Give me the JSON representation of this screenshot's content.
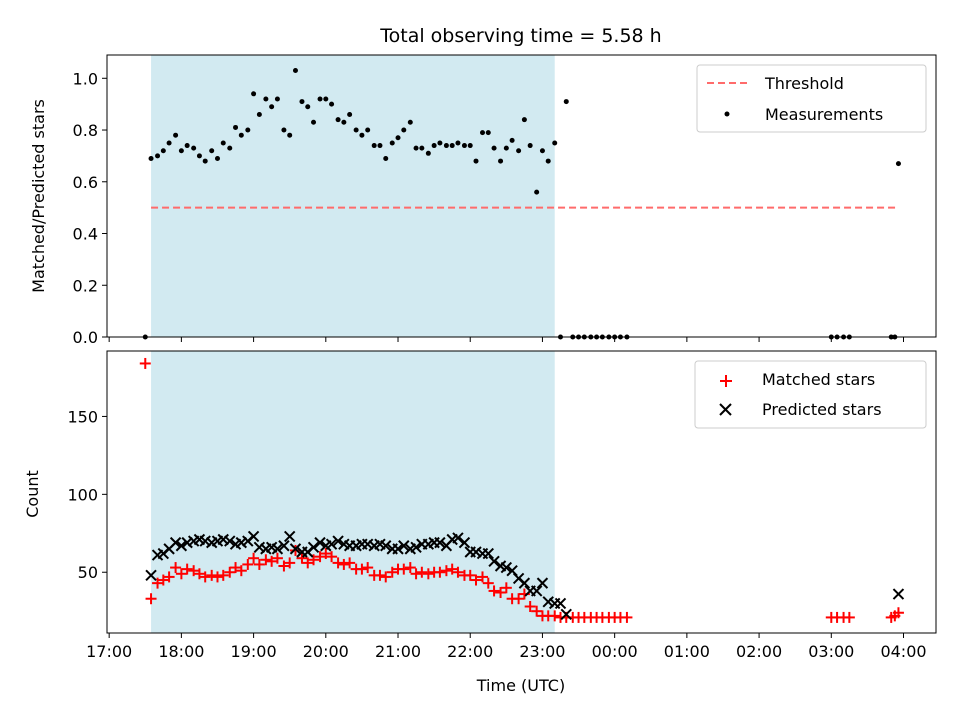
{
  "chart_data": {
    "title": "Total observing time = 5.58 h",
    "xlabel": "Time (UTC)",
    "x_tick_labels": [
      "17:00",
      "18:00",
      "19:00",
      "20:00",
      "21:00",
      "22:00",
      "23:00",
      "00:00",
      "01:00",
      "02:00",
      "03:00",
      "04:00"
    ],
    "x_range_hours": [
      16.97,
      28.45
    ],
    "observing_window_hours": [
      17.58,
      23.17
    ],
    "shade_color": "#add8e6",
    "panels": [
      {
        "type": "scatter",
        "ylabel": "Matched/Predicted stars",
        "ylim": [
          0,
          1.09
        ],
        "y_ticks": [
          0,
          0.2,
          0.4,
          0.6,
          0.8,
          1.0
        ],
        "y_tick_labels": [
          "0.0",
          "0.2",
          "0.4",
          "0.6",
          "0.8",
          "1.0"
        ],
        "legend_position": "top-right",
        "threshold": {
          "name": "Threshold",
          "value": 0.5,
          "x": [
            17.58,
            27.93
          ],
          "color": "#ff6b6b"
        },
        "series": [
          {
            "name": "Measurements",
            "color": "#000000",
            "x": [
              17.5,
              17.58,
              17.67,
              17.75,
              17.83,
              17.92,
              18.0,
              18.08,
              18.17,
              18.25,
              18.33,
              18.42,
              18.5,
              18.58,
              18.67,
              18.75,
              18.83,
              18.92,
              19.0,
              19.08,
              19.17,
              19.25,
              19.33,
              19.42,
              19.5,
              19.58,
              19.67,
              19.75,
              19.83,
              19.92,
              20.0,
              20.08,
              20.17,
              20.25,
              20.33,
              20.42,
              20.5,
              20.58,
              20.67,
              20.75,
              20.83,
              20.92,
              21.0,
              21.08,
              21.17,
              21.25,
              21.33,
              21.42,
              21.5,
              21.58,
              21.67,
              21.75,
              21.83,
              21.92,
              22.0,
              22.08,
              22.17,
              22.25,
              22.33,
              22.42,
              22.5,
              22.58,
              22.67,
              22.75,
              22.83,
              22.92,
              23.0,
              23.08,
              23.17,
              23.25,
              23.33,
              23.42,
              23.5,
              23.58,
              23.67,
              23.75,
              23.83,
              23.92,
              24.0,
              24.08,
              24.17,
              27.0,
              27.08,
              27.17,
              27.25,
              27.83,
              27.88,
              27.93
            ],
            "y": [
              0.0,
              0.69,
              0.7,
              0.72,
              0.75,
              0.78,
              0.72,
              0.74,
              0.73,
              0.7,
              0.68,
              0.72,
              0.69,
              0.75,
              0.73,
              0.81,
              0.78,
              0.8,
              0.94,
              0.86,
              0.92,
              0.89,
              0.92,
              0.8,
              0.78,
              1.03,
              0.91,
              0.89,
              0.83,
              0.92,
              0.92,
              0.9,
              0.84,
              0.83,
              0.86,
              0.8,
              0.78,
              0.8,
              0.74,
              0.74,
              0.69,
              0.75,
              0.77,
              0.8,
              0.83,
              0.73,
              0.73,
              0.71,
              0.74,
              0.75,
              0.74,
              0.74,
              0.75,
              0.74,
              0.74,
              0.68,
              0.79,
              0.79,
              0.73,
              0.68,
              0.73,
              0.76,
              0.72,
              0.84,
              0.74,
              0.56,
              0.72,
              0.68,
              0.75,
              0.0,
              0.91,
              0.0,
              0.0,
              0.0,
              0.0,
              0.0,
              0.0,
              0.0,
              0.0,
              0.0,
              0.0,
              0.0,
              0.0,
              0.0,
              0.0,
              0.0,
              0.0,
              0.67
            ]
          }
        ]
      },
      {
        "type": "scatter",
        "ylabel": "Count",
        "ylim": [
          11,
          192
        ],
        "y_ticks": [
          50,
          100,
          150
        ],
        "y_tick_labels": [
          "50",
          "100",
          "150"
        ],
        "legend_position": "top-right",
        "series": [
          {
            "name": "Matched stars",
            "color": "#ff0000",
            "marker": "plus",
            "x": [
              17.5,
              17.58,
              17.67,
              17.75,
              17.83,
              17.92,
              18.0,
              18.08,
              18.17,
              18.25,
              18.33,
              18.42,
              18.5,
              18.58,
              18.67,
              18.75,
              18.83,
              18.92,
              19.0,
              19.08,
              19.17,
              19.25,
              19.33,
              19.42,
              19.5,
              19.58,
              19.67,
              19.75,
              19.83,
              19.92,
              20.0,
              20.08,
              20.17,
              20.25,
              20.33,
              20.42,
              20.5,
              20.58,
              20.67,
              20.75,
              20.83,
              20.92,
              21.0,
              21.08,
              21.17,
              21.25,
              21.33,
              21.42,
              21.5,
              21.58,
              21.67,
              21.75,
              21.83,
              21.92,
              22.0,
              22.08,
              22.17,
              22.25,
              22.33,
              22.42,
              22.5,
              22.58,
              22.67,
              22.75,
              22.83,
              22.92,
              23.0,
              23.08,
              23.17,
              23.25,
              23.33,
              23.42,
              23.5,
              23.58,
              23.67,
              23.75,
              23.83,
              23.92,
              24.0,
              24.08,
              24.17,
              27.0,
              27.08,
              27.17,
              27.25,
              27.83,
              27.88,
              27.93
            ],
            "y": [
              184,
              33,
              43,
              45,
              47,
              53,
              49,
              52,
              51,
              49,
              47,
              48,
              47,
              48,
              50,
              53,
              51,
              55,
              59,
              55,
              58,
              57,
              59,
              54,
              56,
              64,
              59,
              56,
              58,
              60,
              62,
              60,
              56,
              55,
              56,
              52,
              52,
              53,
              48,
              48,
              47,
              50,
              52,
              52,
              53,
              49,
              50,
              49,
              50,
              50,
              51,
              52,
              50,
              48,
              48,
              45,
              47,
              43,
              38,
              37,
              40,
              33,
              33,
              36,
              28,
              25,
              22,
              22,
              22,
              21,
              21,
              21,
              21,
              21,
              21,
              21,
              21,
              21,
              21,
              21,
              21,
              21,
              21,
              21,
              21,
              21,
              22,
              24
            ]
          },
          {
            "name": "Predicted stars",
            "color": "#000000",
            "marker": "x",
            "x": [
              17.58,
              17.67,
              17.75,
              17.83,
              17.92,
              18.0,
              18.08,
              18.17,
              18.25,
              18.33,
              18.42,
              18.5,
              18.58,
              18.67,
              18.75,
              18.83,
              18.92,
              19.0,
              19.08,
              19.17,
              19.25,
              19.33,
              19.42,
              19.5,
              19.58,
              19.67,
              19.75,
              19.83,
              19.92,
              20.0,
              20.08,
              20.17,
              20.25,
              20.33,
              20.42,
              20.5,
              20.58,
              20.67,
              20.75,
              20.83,
              20.92,
              21.0,
              21.08,
              21.17,
              21.25,
              21.33,
              21.42,
              21.5,
              21.58,
              21.67,
              21.75,
              21.83,
              21.92,
              22.0,
              22.08,
              22.17,
              22.25,
              22.33,
              22.42,
              22.5,
              22.58,
              22.67,
              22.75,
              22.83,
              22.92,
              23.0,
              23.08,
              23.17,
              23.25,
              23.33,
              27.93
            ],
            "y": [
              48,
              61,
              62,
              65,
              69,
              67,
              69,
              70,
              71,
              70,
              69,
              70,
              71,
              70,
              68,
              69,
              70,
              73,
              66,
              65,
              66,
              65,
              67,
              73,
              65,
              63,
              63,
              66,
              69,
              67,
              68,
              70,
              68,
              67,
              67,
              68,
              68,
              67,
              68,
              67,
              65,
              65,
              67,
              65,
              66,
              68,
              68,
              69,
              69,
              67,
              71,
              72,
              69,
              63,
              63,
              62,
              62,
              57,
              54,
              53,
              51,
              46,
              43,
              38,
              38,
              43,
              31,
              30,
              30,
              23,
              36
            ]
          }
        ]
      }
    ]
  }
}
